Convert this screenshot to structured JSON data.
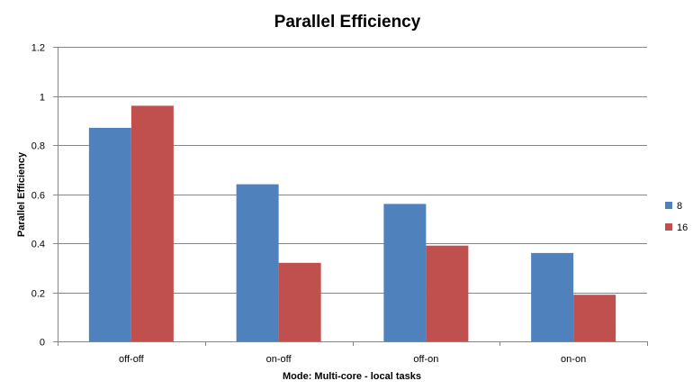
{
  "chart_data": {
    "type": "bar",
    "title": "Parallel Efficiency",
    "xlabel": "Mode: Multi-core  - local tasks",
    "ylabel": "Parallel Efficiency",
    "categories": [
      "off-off",
      "on-off",
      "off-on",
      "on-on"
    ],
    "series": [
      {
        "name": "8",
        "values": [
          0.87,
          0.64,
          0.56,
          0.36
        ],
        "color": "#4F81BD"
      },
      {
        "name": "16",
        "values": [
          0.96,
          0.32,
          0.39,
          0.19
        ],
        "color": "#C0504D"
      }
    ],
    "ylim": [
      0,
      1.2
    ],
    "yticks": [
      "0",
      "0.2",
      "0.4",
      "0.6",
      "0.8",
      "1",
      "1.2"
    ],
    "grid": true,
    "legend_position": "right"
  }
}
